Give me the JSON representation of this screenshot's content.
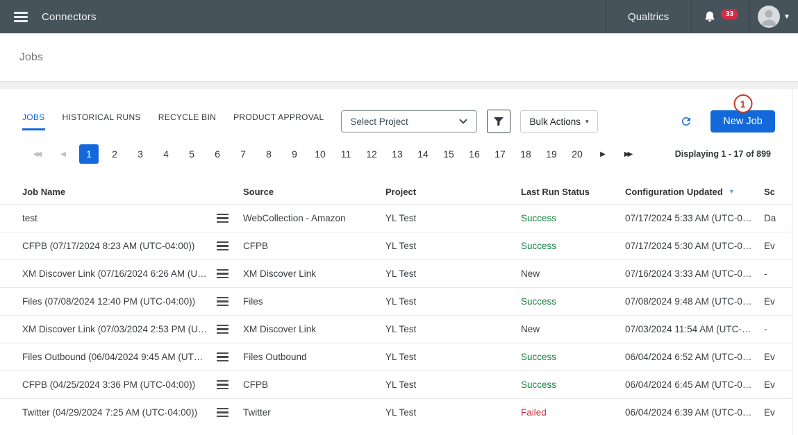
{
  "colors": {
    "topbar_bg": "#47535b",
    "accent_blue": "#1369d9",
    "success_green": "#168240",
    "failed_red": "#c8313e",
    "notification_badge_red": "#d62a47",
    "annotation_red": "#c0392b"
  },
  "topbar": {
    "title": "Connectors",
    "brand": "Qualtrics",
    "notification_count": "33",
    "account_caret": "▼"
  },
  "page": {
    "title": "Jobs"
  },
  "tabs": [
    {
      "label": "JOBS",
      "active": true
    },
    {
      "label": "HISTORICAL RUNS",
      "active": false
    },
    {
      "label": "RECYCLE BIN",
      "active": false
    },
    {
      "label": "PRODUCT APPROVAL",
      "active": false
    }
  ],
  "toolbar": {
    "project_select_value": "Select Project",
    "bulk_actions_label": "Bulk Actions",
    "bulk_caret": "▾",
    "new_job_label": "New Job",
    "annotation_badge": "1"
  },
  "pagination": {
    "pages": [
      "1",
      "2",
      "3",
      "4",
      "5",
      "6",
      "7",
      "8",
      "9",
      "10",
      "11",
      "12",
      "13",
      "14",
      "15",
      "16",
      "17",
      "18",
      "19",
      "20"
    ],
    "active_page": "1",
    "icons": {
      "first": "◀◀",
      "prev": "◀",
      "next": "▶",
      "last": "▶▶"
    },
    "first_enabled": false,
    "prev_enabled": false,
    "next_enabled": true,
    "last_enabled": true,
    "summary": "Displaying 1 - 17 of 899"
  },
  "table": {
    "columns": [
      "Job Name",
      "Source",
      "Project",
      "Last Run Status",
      "Configuration Updated",
      "Sc"
    ],
    "sorted_column": "Configuration Updated",
    "sort_icon": "▼",
    "rows": [
      {
        "job_name": "test",
        "source": "WebCollection - Amazon",
        "project": "YL Test",
        "status": "Success",
        "status_type": "success",
        "updated": "07/17/2024 5:33 AM (UTC-0…",
        "schedule": "Da"
      },
      {
        "job_name": "CFPB (07/17/2024 8:23 AM (UTC-04:00))",
        "source": "CFPB",
        "project": "YL Test",
        "status": "Success",
        "status_type": "success",
        "updated": "07/17/2024 5:30 AM (UTC-0…",
        "schedule": "Ev"
      },
      {
        "job_name": "XM Discover Link (07/16/2024 6:26 AM (U…",
        "source": "XM Discover Link",
        "project": "YL Test",
        "status": "New",
        "status_type": "new",
        "updated": "07/16/2024 3:33 AM (UTC-0…",
        "schedule": "-"
      },
      {
        "job_name": "Files (07/08/2024 12:40 PM (UTC-04:00))",
        "source": "Files",
        "project": "YL Test",
        "status": "Success",
        "status_type": "success",
        "updated": "07/08/2024 9:48 AM (UTC-0…",
        "schedule": "Ev"
      },
      {
        "job_name": "XM Discover Link (07/03/2024 2:53 PM (U…",
        "source": "XM Discover Link",
        "project": "YL Test",
        "status": "New",
        "status_type": "new",
        "updated": "07/03/2024 11:54 AM (UTC-…",
        "schedule": "-"
      },
      {
        "job_name": "Files Outbound (06/04/2024 9:45 AM (UT…",
        "source": "Files Outbound",
        "project": "YL Test",
        "status": "Success",
        "status_type": "success",
        "updated": "06/04/2024 6:52 AM (UTC-0…",
        "schedule": "Ev"
      },
      {
        "job_name": "CFPB (04/25/2024 3:36 PM (UTC-04:00))",
        "source": "CFPB",
        "project": "YL Test",
        "status": "Success",
        "status_type": "success",
        "updated": "06/04/2024 6:45 AM (UTC-0…",
        "schedule": "Ev"
      },
      {
        "job_name": "Twitter (04/29/2024 7:25 AM (UTC-04:00))",
        "source": "Twitter",
        "project": "YL Test",
        "status": "Failed",
        "status_type": "failed",
        "updated": "06/04/2024 6:39 AM (UTC-0…",
        "schedule": "Ev"
      }
    ]
  }
}
